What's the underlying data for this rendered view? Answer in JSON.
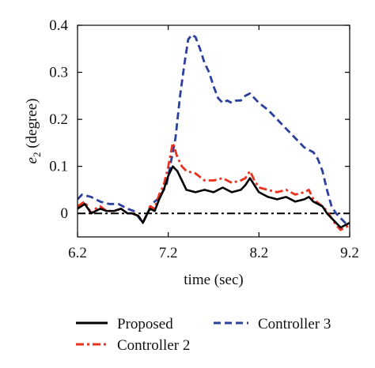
{
  "chart_data": {
    "type": "line",
    "xlabel": "time (sec)",
    "ylabel_main": "e",
    "ylabel_sub": "2",
    "ylabel_rest": " (degree)",
    "xlim": [
      6.2,
      9.2
    ],
    "ylim": [
      -0.05,
      0.4
    ],
    "xticks": [
      6.2,
      7.2,
      8.2,
      9.2
    ],
    "xtick_labels": [
      "6.2",
      "7.2",
      "8.2",
      "9.2"
    ],
    "yticks": [
      0,
      0.1,
      0.2,
      0.3,
      0.4
    ],
    "ytick_labels": [
      "0",
      "0.1",
      "0.2",
      "0.3",
      "0.4"
    ],
    "grid": false,
    "legend_position": "bottom",
    "reference_line": {
      "y": 0,
      "color": "#000000",
      "style": "dash-dot"
    },
    "series": [
      {
        "name": "Proposed",
        "color": "#000000",
        "style": "solid",
        "points": [
          [
            6.2,
            0.01
          ],
          [
            6.28,
            0.02
          ],
          [
            6.35,
            0.0
          ],
          [
            6.4,
            0.005
          ],
          [
            6.45,
            0.01
          ],
          [
            6.52,
            0.005
          ],
          [
            6.6,
            0.005
          ],
          [
            6.68,
            0.01
          ],
          [
            6.75,
            0.0
          ],
          [
            6.8,
            0.0
          ],
          [
            6.87,
            -0.005
          ],
          [
            6.92,
            -0.02
          ],
          [
            6.97,
            0.0
          ],
          [
            7.0,
            0.01
          ],
          [
            7.05,
            0.005
          ],
          [
            7.1,
            0.03
          ],
          [
            7.15,
            0.05
          ],
          [
            7.2,
            0.08
          ],
          [
            7.25,
            0.1
          ],
          [
            7.3,
            0.09
          ],
          [
            7.35,
            0.07
          ],
          [
            7.4,
            0.05
          ],
          [
            7.5,
            0.045
          ],
          [
            7.6,
            0.05
          ],
          [
            7.7,
            0.045
          ],
          [
            7.8,
            0.055
          ],
          [
            7.9,
            0.045
          ],
          [
            8.0,
            0.05
          ],
          [
            8.05,
            0.06
          ],
          [
            8.1,
            0.075
          ],
          [
            8.15,
            0.06
          ],
          [
            8.2,
            0.045
          ],
          [
            8.3,
            0.035
          ],
          [
            8.4,
            0.03
          ],
          [
            8.5,
            0.035
          ],
          [
            8.6,
            0.025
          ],
          [
            8.7,
            0.03
          ],
          [
            8.75,
            0.035
          ],
          [
            8.8,
            0.025
          ],
          [
            8.9,
            0.015
          ],
          [
            8.95,
            0.0
          ],
          [
            9.0,
            -0.01
          ],
          [
            9.05,
            -0.02
          ],
          [
            9.1,
            -0.03
          ],
          [
            9.15,
            -0.025
          ],
          [
            9.2,
            -0.02
          ]
        ]
      },
      {
        "name": "Controller 2",
        "color": "#e8321e",
        "style": "dash-dot",
        "points": [
          [
            6.2,
            0.015
          ],
          [
            6.28,
            0.025
          ],
          [
            6.35,
            0.0
          ],
          [
            6.4,
            0.01
          ],
          [
            6.45,
            0.015
          ],
          [
            6.52,
            0.005
          ],
          [
            6.6,
            0.005
          ],
          [
            6.68,
            0.01
          ],
          [
            6.75,
            0.0
          ],
          [
            6.8,
            0.0
          ],
          [
            6.87,
            -0.005
          ],
          [
            6.92,
            -0.02
          ],
          [
            6.97,
            0.0
          ],
          [
            7.0,
            0.015
          ],
          [
            7.05,
            0.01
          ],
          [
            7.1,
            0.04
          ],
          [
            7.15,
            0.06
          ],
          [
            7.2,
            0.1
          ],
          [
            7.25,
            0.15
          ],
          [
            7.3,
            0.12
          ],
          [
            7.35,
            0.1
          ],
          [
            7.4,
            0.09
          ],
          [
            7.5,
            0.085
          ],
          [
            7.6,
            0.07
          ],
          [
            7.7,
            0.07
          ],
          [
            7.8,
            0.075
          ],
          [
            7.9,
            0.065
          ],
          [
            8.0,
            0.07
          ],
          [
            8.05,
            0.075
          ],
          [
            8.1,
            0.09
          ],
          [
            8.15,
            0.07
          ],
          [
            8.2,
            0.055
          ],
          [
            8.3,
            0.05
          ],
          [
            8.4,
            0.045
          ],
          [
            8.5,
            0.05
          ],
          [
            8.6,
            0.04
          ],
          [
            8.7,
            0.045
          ],
          [
            8.75,
            0.05
          ],
          [
            8.8,
            0.03
          ],
          [
            8.9,
            0.015
          ],
          [
            8.95,
            0.005
          ],
          [
            9.0,
            -0.01
          ],
          [
            9.05,
            -0.025
          ],
          [
            9.1,
            -0.035
          ],
          [
            9.15,
            -0.03
          ],
          [
            9.2,
            -0.025
          ]
        ]
      },
      {
        "name": "Controller 3",
        "color": "#2b3f9e",
        "style": "dashed",
        "points": [
          [
            6.2,
            0.03
          ],
          [
            6.25,
            0.04
          ],
          [
            6.35,
            0.035
          ],
          [
            6.45,
            0.025
          ],
          [
            6.55,
            0.02
          ],
          [
            6.65,
            0.02
          ],
          [
            6.75,
            0.01
          ],
          [
            6.82,
            0.005
          ],
          [
            6.88,
            -0.01
          ],
          [
            6.92,
            -0.02
          ],
          [
            6.97,
            0.0
          ],
          [
            7.02,
            0.02
          ],
          [
            7.08,
            0.03
          ],
          [
            7.12,
            0.04
          ],
          [
            7.18,
            0.06
          ],
          [
            7.22,
            0.1
          ],
          [
            7.28,
            0.16
          ],
          [
            7.33,
            0.25
          ],
          [
            7.38,
            0.32
          ],
          [
            7.42,
            0.37
          ],
          [
            7.46,
            0.38
          ],
          [
            7.5,
            0.375
          ],
          [
            7.55,
            0.35
          ],
          [
            7.6,
            0.32
          ],
          [
            7.65,
            0.3
          ],
          [
            7.7,
            0.27
          ],
          [
            7.75,
            0.245
          ],
          [
            7.8,
            0.235
          ],
          [
            7.85,
            0.24
          ],
          [
            7.9,
            0.235
          ],
          [
            7.95,
            0.24
          ],
          [
            8.0,
            0.24
          ],
          [
            8.05,
            0.25
          ],
          [
            8.1,
            0.255
          ],
          [
            8.15,
            0.245
          ],
          [
            8.2,
            0.235
          ],
          [
            8.3,
            0.22
          ],
          [
            8.4,
            0.2
          ],
          [
            8.5,
            0.18
          ],
          [
            8.6,
            0.16
          ],
          [
            8.7,
            0.14
          ],
          [
            8.8,
            0.13
          ],
          [
            8.85,
            0.115
          ],
          [
            8.9,
            0.09
          ],
          [
            8.95,
            0.05
          ],
          [
            9.0,
            0.015
          ],
          [
            9.05,
            0.0
          ],
          [
            9.1,
            -0.01
          ],
          [
            9.15,
            -0.02
          ],
          [
            9.2,
            -0.025
          ]
        ]
      }
    ],
    "legend": [
      {
        "name": "Proposed",
        "color": "#000000",
        "style": "solid"
      },
      {
        "name": "Controller 3",
        "color": "#2b3f9e",
        "style": "dashed"
      },
      {
        "name": "Controller 2",
        "color": "#e8321e",
        "style": "dash-dot"
      }
    ]
  }
}
